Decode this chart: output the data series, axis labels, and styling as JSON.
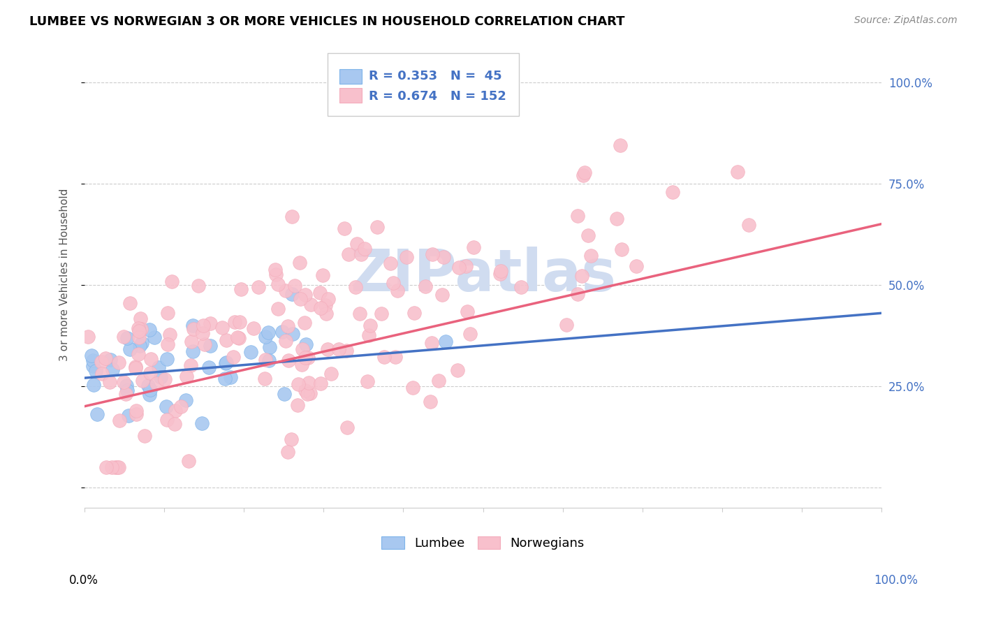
{
  "title": "LUMBEE VS NORWEGIAN 3 OR MORE VEHICLES IN HOUSEHOLD CORRELATION CHART",
  "source": "Source: ZipAtlas.com",
  "ylabel": "3 or more Vehicles in Household",
  "lumbee_color": "#A8C8F0",
  "lumbee_edge_color": "#7EB4EA",
  "norwegian_color": "#F8C0CC",
  "norwegian_edge_color": "#F4ACBB",
  "lumbee_line_color": "#4472C4",
  "norwegian_line_color": "#E9627D",
  "legend_text_color": "#4472C4",
  "watermark_color": "#D0DCF0",
  "lumbee_r": 0.353,
  "lumbee_n": 45,
  "norwegian_r": 0.674,
  "norwegian_n": 152,
  "xlim": [
    0,
    1
  ],
  "ylim": [
    -0.05,
    1.1
  ],
  "yticks": [
    0.0,
    0.25,
    0.5,
    0.75,
    1.0
  ],
  "yticklabels_right": [
    "",
    "25.0%",
    "50.0%",
    "75.0%",
    "100.0%"
  ],
  "grid_color": "#CCCCCC",
  "spine_color": "#CCCCCC",
  "source_color": "#888888"
}
